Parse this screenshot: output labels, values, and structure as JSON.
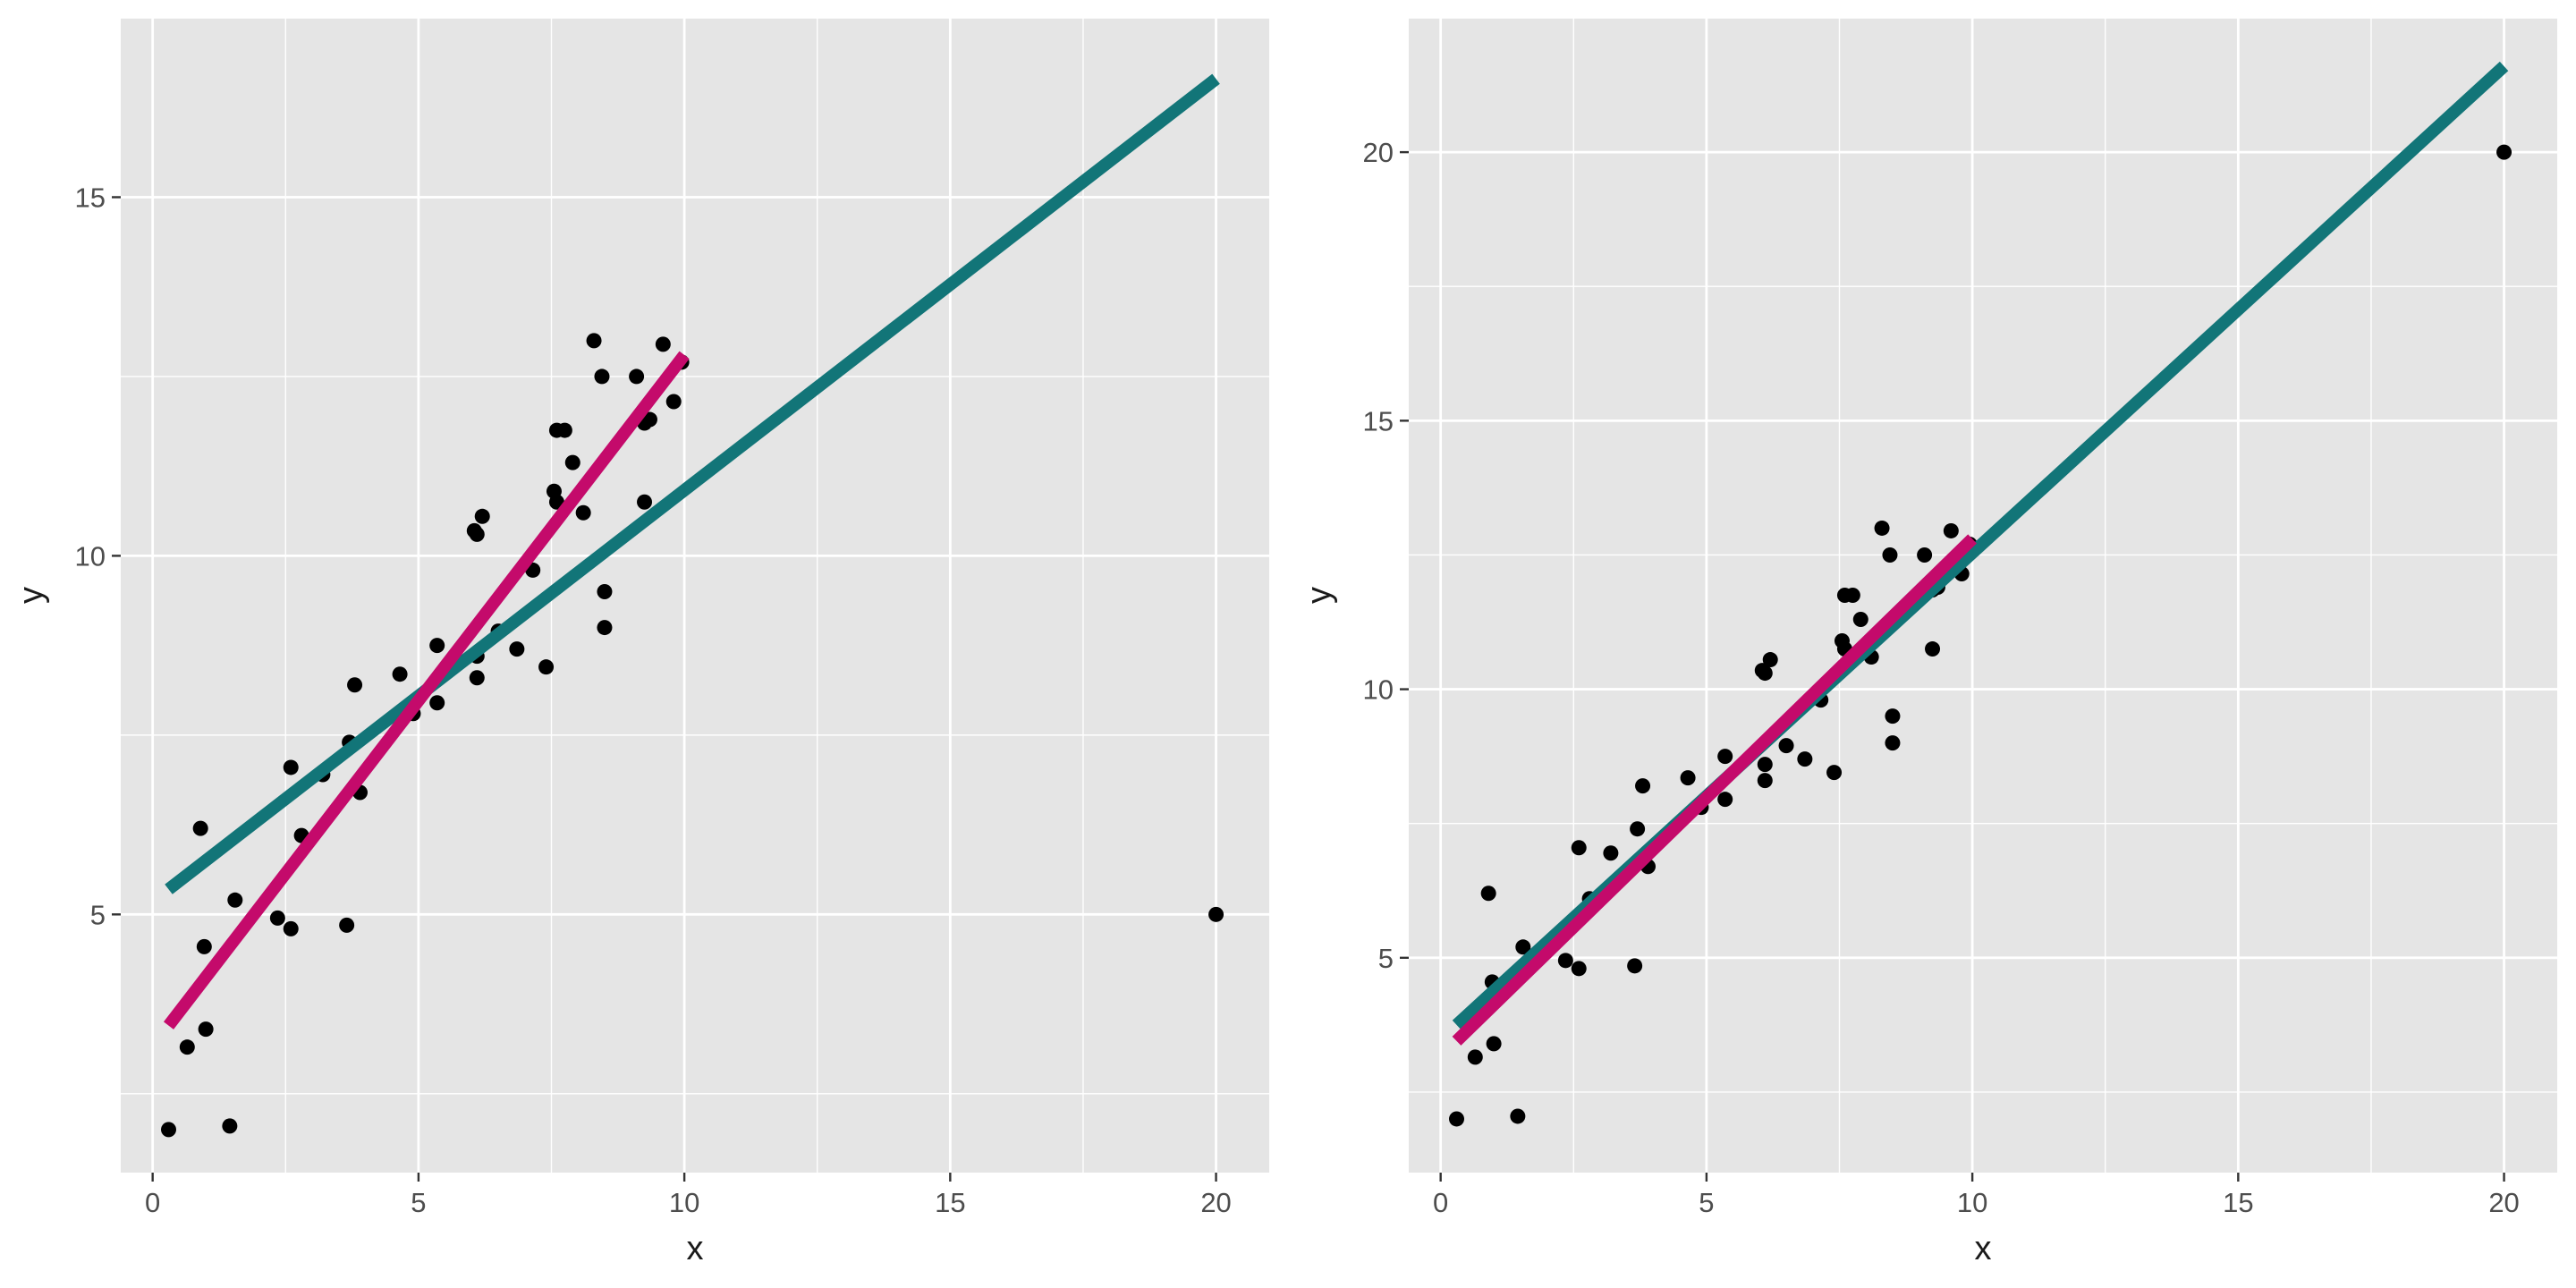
{
  "colors": {
    "panel_background": "#E5E5E5",
    "grid_line": "#FFFFFF",
    "point": "#000000",
    "fit_line_teal": "#127578",
    "fit_line_magenta": "#C40A6B"
  },
  "chart_data": [
    {
      "type": "scatter",
      "xlabel": "x",
      "ylabel": "y",
      "xlim": [
        -0.6,
        21.0
      ],
      "ylim": [
        1.4,
        17.5
      ],
      "x_ticks": [
        0,
        5,
        10,
        15,
        20
      ],
      "x_tick_labels": [
        "0",
        "5",
        "10",
        "15",
        "20"
      ],
      "y_ticks": [
        5,
        10,
        15
      ],
      "y_tick_labels": [
        "5",
        "10",
        "15"
      ],
      "grid": true,
      "legend": "none",
      "points": [
        [
          0.3,
          2.0
        ],
        [
          0.65,
          3.15
        ],
        [
          0.9,
          6.2
        ],
        [
          0.97,
          4.55
        ],
        [
          1.0,
          3.4
        ],
        [
          1.45,
          2.05
        ],
        [
          1.55,
          5.2
        ],
        [
          2.35,
          4.95
        ],
        [
          2.6,
          7.05
        ],
        [
          2.6,
          4.8
        ],
        [
          2.8,
          6.1
        ],
        [
          3.2,
          6.95
        ],
        [
          3.65,
          4.85
        ],
        [
          3.7,
          7.4
        ],
        [
          3.8,
          8.2
        ],
        [
          3.9,
          6.7
        ],
        [
          4.65,
          8.35
        ],
        [
          4.9,
          7.8
        ],
        [
          5.35,
          8.75
        ],
        [
          5.35,
          7.95
        ],
        [
          6.05,
          10.35
        ],
        [
          6.1,
          10.3
        ],
        [
          6.1,
          8.6
        ],
        [
          6.1,
          8.3
        ],
        [
          6.2,
          10.55
        ],
        [
          6.5,
          8.95
        ],
        [
          6.85,
          8.7
        ],
        [
          7.15,
          9.8
        ],
        [
          7.4,
          8.45
        ],
        [
          7.55,
          10.9
        ],
        [
          7.6,
          11.75
        ],
        [
          7.6,
          10.75
        ],
        [
          7.75,
          11.75
        ],
        [
          7.9,
          11.3
        ],
        [
          8.1,
          10.6
        ],
        [
          8.3,
          13.0
        ],
        [
          8.45,
          12.5
        ],
        [
          8.5,
          9.5
        ],
        [
          8.5,
          9.0
        ],
        [
          9.1,
          12.5
        ],
        [
          9.25,
          10.75
        ],
        [
          9.25,
          11.85
        ],
        [
          9.35,
          11.9
        ],
        [
          9.6,
          12.95
        ],
        [
          9.8,
          12.15
        ],
        [
          9.95,
          12.7
        ],
        [
          20.0,
          5.0
        ]
      ],
      "lines": [
        {
          "color": "teal",
          "x": [
            0.3,
            20.0
          ],
          "y": [
            5.35,
            16.65
          ]
        },
        {
          "color": "magenta",
          "x": [
            0.3,
            10.0
          ],
          "y": [
            3.45,
            12.8
          ]
        }
      ]
    },
    {
      "type": "scatter",
      "xlabel": "x",
      "ylabel": "y",
      "xlim": [
        -0.6,
        21.0
      ],
      "ylim": [
        1.0,
        22.5
      ],
      "x_ticks": [
        0,
        5,
        10,
        15,
        20
      ],
      "x_tick_labels": [
        "0",
        "5",
        "10",
        "15",
        "20"
      ],
      "y_ticks": [
        5,
        10,
        15,
        20
      ],
      "y_tick_labels": [
        "5",
        "10",
        "15",
        "20"
      ],
      "grid": true,
      "legend": "none",
      "points": [
        [
          0.3,
          2.0
        ],
        [
          0.65,
          3.15
        ],
        [
          0.9,
          6.2
        ],
        [
          0.97,
          4.55
        ],
        [
          1.0,
          3.4
        ],
        [
          1.45,
          2.05
        ],
        [
          1.55,
          5.2
        ],
        [
          2.35,
          4.95
        ],
        [
          2.6,
          7.05
        ],
        [
          2.6,
          4.8
        ],
        [
          2.8,
          6.1
        ],
        [
          3.2,
          6.95
        ],
        [
          3.65,
          4.85
        ],
        [
          3.7,
          7.4
        ],
        [
          3.8,
          8.2
        ],
        [
          3.9,
          6.7
        ],
        [
          4.65,
          8.35
        ],
        [
          4.9,
          7.8
        ],
        [
          5.35,
          8.75
        ],
        [
          5.35,
          7.95
        ],
        [
          6.05,
          10.35
        ],
        [
          6.1,
          10.3
        ],
        [
          6.1,
          8.6
        ],
        [
          6.1,
          8.3
        ],
        [
          6.2,
          10.55
        ],
        [
          6.5,
          8.95
        ],
        [
          6.85,
          8.7
        ],
        [
          7.15,
          9.8
        ],
        [
          7.4,
          8.45
        ],
        [
          7.55,
          10.9
        ],
        [
          7.6,
          11.75
        ],
        [
          7.6,
          10.75
        ],
        [
          7.75,
          11.75
        ],
        [
          7.9,
          11.3
        ],
        [
          8.1,
          10.6
        ],
        [
          8.3,
          13.0
        ],
        [
          8.45,
          12.5
        ],
        [
          8.5,
          9.5
        ],
        [
          8.5,
          9.0
        ],
        [
          9.1,
          12.5
        ],
        [
          9.25,
          10.75
        ],
        [
          9.25,
          11.85
        ],
        [
          9.35,
          11.9
        ],
        [
          9.6,
          12.95
        ],
        [
          9.8,
          12.15
        ],
        [
          9.95,
          12.7
        ],
        [
          20.0,
          20.0
        ]
      ],
      "lines": [
        {
          "color": "teal",
          "x": [
            0.3,
            20.0
          ],
          "y": [
            3.75,
            21.6
          ]
        },
        {
          "color": "magenta",
          "x": [
            0.3,
            10.0
          ],
          "y": [
            3.45,
            12.8
          ]
        }
      ]
    }
  ]
}
